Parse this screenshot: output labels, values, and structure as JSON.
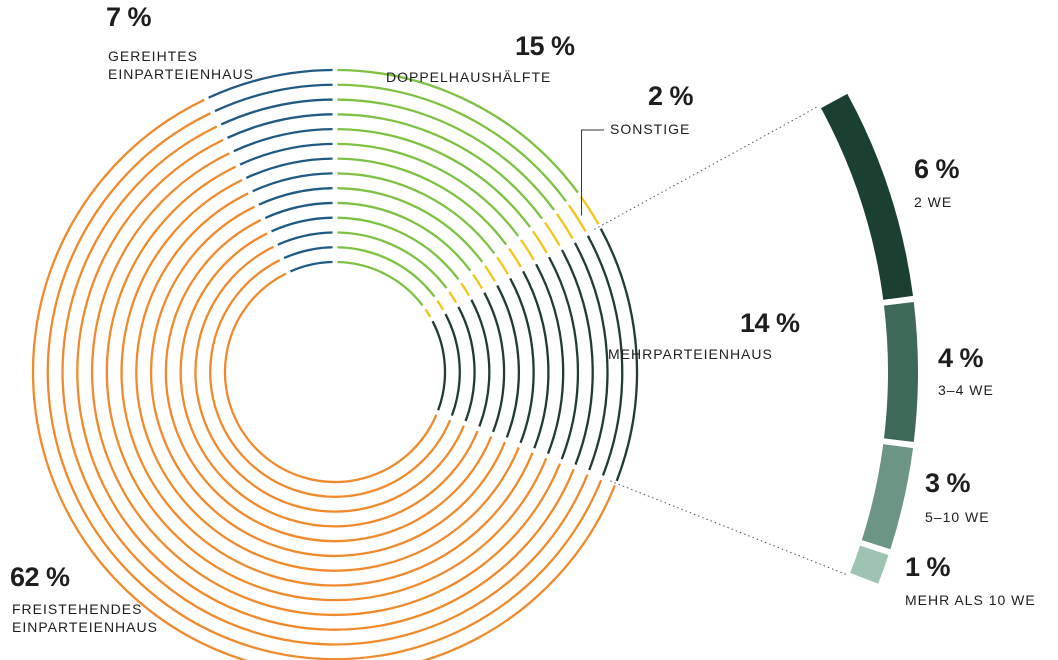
{
  "chart_data": {
    "type": "pie",
    "categories": [
      "DOPPELHAUSHÄLFTE",
      "SONSTIGE",
      "MEHRPARTEIENHAUS",
      "FREISTEHENDES EINPARTEIENHAUS",
      "GEREIHTES EINPARTEIENHAUS"
    ],
    "values": [
      15,
      2,
      14,
      62,
      7
    ],
    "value_labels": [
      "15 %",
      "2 %",
      "14 %",
      "62 %",
      "7 %"
    ],
    "colors": [
      "#7dc242",
      "#f5c518",
      "#1f3d30",
      "#f08a2c",
      "#1f5a85"
    ],
    "breakdown": {
      "type": "stacked-arc",
      "categories": [
        "2 WE",
        "3–4 WE",
        "5–10 WE",
        "MEHR ALS 10 WE"
      ],
      "values": [
        6,
        4,
        3,
        1
      ],
      "value_labels": [
        "6 %",
        "4 %",
        "3 %",
        "1 %"
      ],
      "colors": [
        "#1b3f31",
        "#3e6857",
        "#6c9585",
        "#9dc3b3"
      ]
    }
  }
}
